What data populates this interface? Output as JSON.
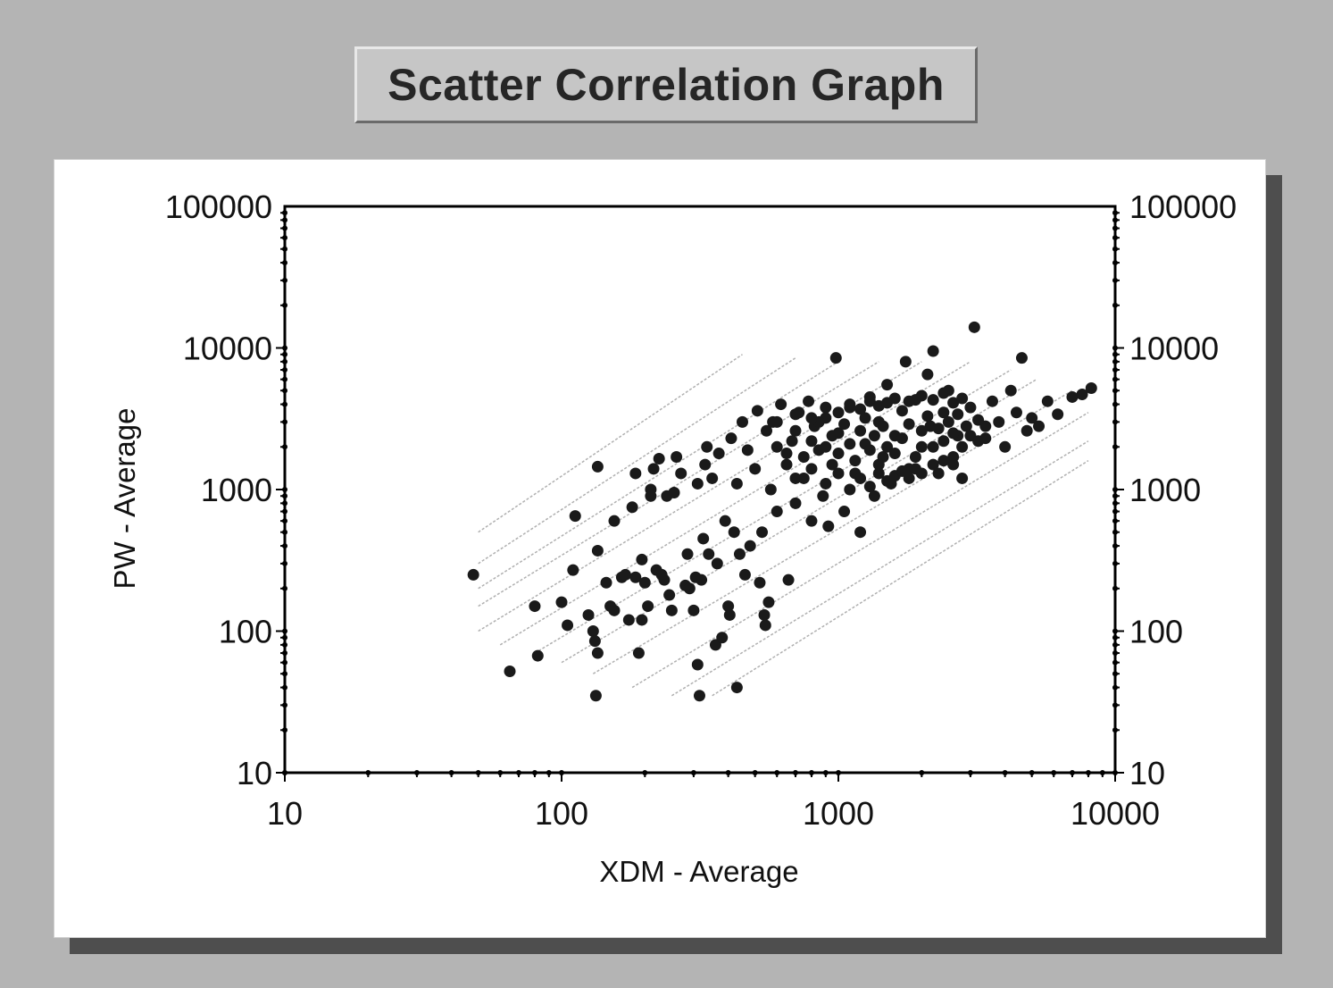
{
  "chart_data": {
    "type": "scatter",
    "title": "Scatter Correlation Graph",
    "xlabel": "XDM  - Average",
    "ylabel": "PW - Average",
    "x_scale": "log",
    "y_scale": "log",
    "xlim": [
      10,
      10000
    ],
    "ylim": [
      10,
      100000
    ],
    "x_ticks": [
      "10",
      "100",
      "1000",
      "10000"
    ],
    "y_ticks": [
      "10",
      "100",
      "1000",
      "10000",
      "100000"
    ],
    "y_ticks_right": [
      "10",
      "100",
      "1000",
      "10000",
      "100000"
    ],
    "grid": false,
    "reference_lines_slope": 1,
    "reference_lines": [
      {
        "x": [
          50,
          450
        ],
        "y": [
          500,
          9000
        ]
      },
      {
        "x": [
          50,
          700
        ],
        "y": [
          300,
          8500
        ]
      },
      {
        "x": [
          50,
          1000
        ],
        "y": [
          200,
          8000
        ]
      },
      {
        "x": [
          50,
          1400
        ],
        "y": [
          150,
          8000
        ]
      },
      {
        "x": [
          50,
          2000
        ],
        "y": [
          100,
          8000
        ]
      },
      {
        "x": [
          60,
          3000
        ],
        "y": [
          80,
          8000
        ]
      },
      {
        "x": [
          80,
          4200
        ],
        "y": [
          70,
          7000
        ]
      },
      {
        "x": [
          100,
          5200
        ],
        "y": [
          60,
          6000
        ]
      },
      {
        "x": [
          130,
          7000
        ],
        "y": [
          50,
          5000
        ]
      },
      {
        "x": [
          180,
          8000
        ],
        "y": [
          40,
          3500
        ]
      },
      {
        "x": [
          250,
          8000
        ],
        "y": [
          35,
          2200
        ]
      },
      {
        "x": [
          350,
          8000
        ],
        "y": [
          35,
          1600
        ]
      }
    ],
    "points": [
      [
        48,
        250
      ],
      [
        65,
        52
      ],
      [
        80,
        150
      ],
      [
        82,
        67
      ],
      [
        100,
        160
      ],
      [
        105,
        110
      ],
      [
        110,
        270
      ],
      [
        112,
        650
      ],
      [
        125,
        130
      ],
      [
        130,
        100
      ],
      [
        132,
        85
      ],
      [
        135,
        70
      ],
      [
        133,
        35
      ],
      [
        135,
        370
      ],
      [
        135,
        1450
      ],
      [
        145,
        220
      ],
      [
        150,
        150
      ],
      [
        155,
        140
      ],
      [
        155,
        600
      ],
      [
        165,
        240
      ],
      [
        170,
        250
      ],
      [
        175,
        120
      ],
      [
        180,
        750
      ],
      [
        185,
        1300
      ],
      [
        185,
        240
      ],
      [
        190,
        70
      ],
      [
        195,
        120
      ],
      [
        195,
        320
      ],
      [
        200,
        220
      ],
      [
        205,
        150
      ],
      [
        210,
        1000
      ],
      [
        210,
        900
      ],
      [
        215,
        1400
      ],
      [
        220,
        270
      ],
      [
        225,
        1650
      ],
      [
        230,
        250
      ],
      [
        235,
        230
      ],
      [
        240,
        900
      ],
      [
        245,
        180
      ],
      [
        250,
        140
      ],
      [
        255,
        950
      ],
      [
        260,
        1700
      ],
      [
        270,
        1300
      ],
      [
        280,
        210
      ],
      [
        285,
        350
      ],
      [
        290,
        200
      ],
      [
        300,
        140
      ],
      [
        305,
        240
      ],
      [
        310,
        58
      ],
      [
        310,
        1100
      ],
      [
        315,
        35
      ],
      [
        320,
        230
      ],
      [
        325,
        450
      ],
      [
        330,
        1500
      ],
      [
        335,
        2000
      ],
      [
        340,
        350
      ],
      [
        350,
        1200
      ],
      [
        360,
        80
      ],
      [
        365,
        300
      ],
      [
        370,
        1800
      ],
      [
        380,
        90
      ],
      [
        390,
        600
      ],
      [
        400,
        150
      ],
      [
        405,
        130
      ],
      [
        410,
        2300
      ],
      [
        420,
        500
      ],
      [
        430,
        40
      ],
      [
        430,
        1100
      ],
      [
        440,
        350
      ],
      [
        450,
        3000
      ],
      [
        460,
        250
      ],
      [
        470,
        1900
      ],
      [
        480,
        400
      ],
      [
        500,
        1400
      ],
      [
        510,
        3600
      ],
      [
        520,
        220
      ],
      [
        530,
        500
      ],
      [
        540,
        130
      ],
      [
        545,
        110
      ],
      [
        550,
        2600
      ],
      [
        560,
        160
      ],
      [
        570,
        1000
      ],
      [
        580,
        3000
      ],
      [
        600,
        700
      ],
      [
        620,
        4000
      ],
      [
        650,
        1500
      ],
      [
        660,
        230
      ],
      [
        680,
        2200
      ],
      [
        700,
        800
      ],
      [
        720,
        3500
      ],
      [
        750,
        1200
      ],
      [
        780,
        4200
      ],
      [
        800,
        600
      ],
      [
        820,
        2800
      ],
      [
        850,
        1900
      ],
      [
        880,
        900
      ],
      [
        900,
        3200
      ],
      [
        920,
        550
      ],
      [
        950,
        1500
      ],
      [
        980,
        8500
      ],
      [
        1000,
        2500
      ],
      [
        1050,
        700
      ],
      [
        1100,
        3800
      ],
      [
        1150,
        1300
      ],
      [
        1200,
        500
      ],
      [
        1250,
        2100
      ],
      [
        1300,
        4500
      ],
      [
        1350,
        900
      ],
      [
        1400,
        3000
      ],
      [
        1450,
        1700
      ],
      [
        1500,
        5500
      ],
      [
        1550,
        1100
      ],
      [
        1600,
        2400
      ],
      [
        1700,
        3600
      ],
      [
        1750,
        8000
      ],
      [
        1800,
        1400
      ],
      [
        1900,
        4300
      ],
      [
        2000,
        2000
      ],
      [
        2100,
        6500
      ],
      [
        2150,
        2800
      ],
      [
        2200,
        9500
      ],
      [
        2300,
        1300
      ],
      [
        2400,
        3500
      ],
      [
        2500,
        5000
      ],
      [
        2600,
        1700
      ],
      [
        2700,
        2400
      ],
      [
        2800,
        1200
      ],
      [
        3000,
        3800
      ],
      [
        3100,
        14000
      ],
      [
        3200,
        2200
      ],
      [
        3400,
        2800
      ],
      [
        3600,
        4200
      ],
      [
        3800,
        3000
      ],
      [
        4000,
        2000
      ],
      [
        4200,
        5000
      ],
      [
        4400,
        3500
      ],
      [
        4600,
        8500
      ],
      [
        4800,
        2600
      ],
      [
        5000,
        3200
      ],
      [
        5300,
        2800
      ],
      [
        5700,
        4200
      ],
      [
        6200,
        3400
      ],
      [
        7000,
        4500
      ],
      [
        7600,
        4700
      ],
      [
        8200,
        5200
      ],
      [
        600,
        2000
      ],
      [
        650,
        1800
      ],
      [
        700,
        2600
      ],
      [
        750,
        1700
      ],
      [
        800,
        2200
      ],
      [
        850,
        3000
      ],
      [
        900,
        2000
      ],
      [
        950,
        2400
      ],
      [
        1000,
        1800
      ],
      [
        1050,
        2900
      ],
      [
        1100,
        2100
      ],
      [
        1150,
        1600
      ],
      [
        1200,
        2600
      ],
      [
        1250,
        3200
      ],
      [
        1300,
        1900
      ],
      [
        1350,
        2400
      ],
      [
        1400,
        1500
      ],
      [
        1450,
        2800
      ],
      [
        1500,
        2000
      ],
      [
        1600,
        1800
      ],
      [
        1700,
        2300
      ],
      [
        1800,
        2900
      ],
      [
        1900,
        1700
      ],
      [
        2000,
        2600
      ],
      [
        2100,
        3300
      ],
      [
        2200,
        2000
      ],
      [
        2300,
        2700
      ],
      [
        2400,
        2200
      ],
      [
        2500,
        3000
      ],
      [
        2600,
        2500
      ],
      [
        2700,
        3400
      ],
      [
        2800,
        2000
      ],
      [
        2900,
        2800
      ],
      [
        3000,
        2400
      ],
      [
        3200,
        3100
      ],
      [
        3400,
        2300
      ],
      [
        700,
        1200
      ],
      [
        800,
        1400
      ],
      [
        900,
        1100
      ],
      [
        1000,
        1300
      ],
      [
        1100,
        1000
      ],
      [
        1200,
        1200
      ],
      [
        1300,
        1050
      ],
      [
        1400,
        1300
      ],
      [
        1500,
        1150
      ],
      [
        1600,
        1250
      ],
      [
        1700,
        1350
      ],
      [
        1800,
        1200
      ],
      [
        1900,
        1400
      ],
      [
        2000,
        1300
      ],
      [
        2200,
        1500
      ],
      [
        2400,
        1600
      ],
      [
        2600,
        1500
      ],
      [
        600,
        3000
      ],
      [
        700,
        3400
      ],
      [
        800,
        3200
      ],
      [
        900,
        3800
      ],
      [
        1000,
        3500
      ],
      [
        1100,
        4000
      ],
      [
        1200,
        3700
      ],
      [
        1300,
        4200
      ],
      [
        1400,
        3900
      ],
      [
        1500,
        4100
      ],
      [
        1600,
        4400
      ],
      [
        1800,
        4200
      ],
      [
        2000,
        4600
      ],
      [
        2200,
        4300
      ],
      [
        2400,
        4800
      ],
      [
        2600,
        4100
      ],
      [
        2800,
        4400
      ]
    ]
  }
}
